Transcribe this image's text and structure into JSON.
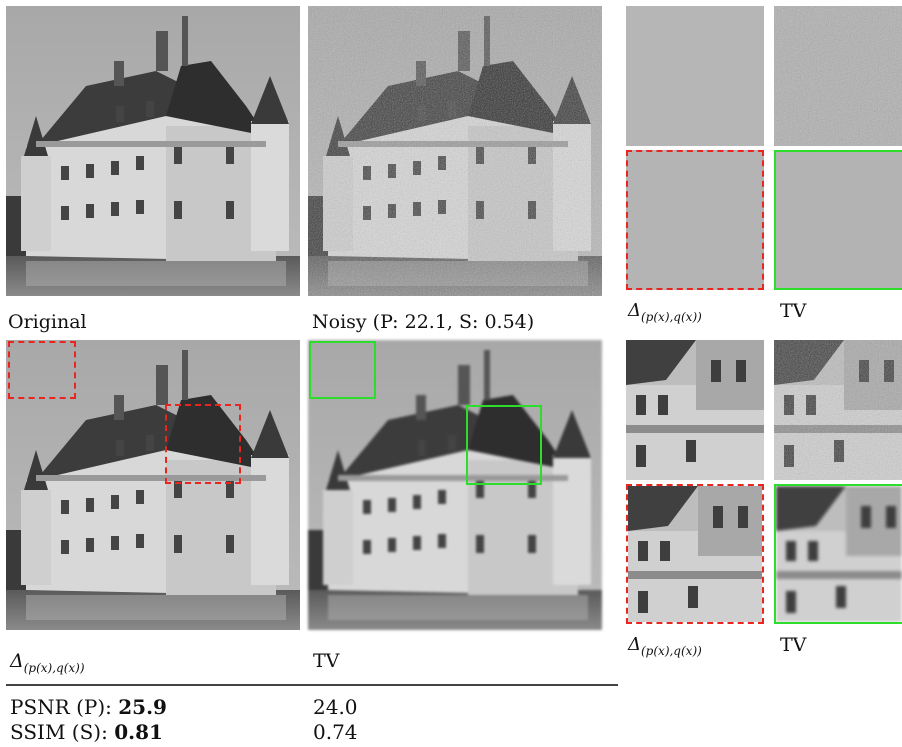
{
  "panels": {
    "original_caption": "Original",
    "noisy_caption": "Noisy (P: 22.1, S: 0.54)",
    "delta_caption_symbol": "Δ",
    "delta_caption_subscript": "(p(x),q(x))",
    "tv_caption": "TV"
  },
  "metrics": {
    "psnr_label": "PSNR (P):",
    "psnr_delta": "25.9",
    "psnr_tv": "24.0",
    "ssim_label": "SSIM (S):",
    "ssim_delta": "0.81",
    "ssim_tv": "0.74"
  },
  "zoom_top": {
    "delta_symbol": "Δ",
    "delta_subscript": "(p(x),q(x))",
    "tv": "TV"
  },
  "zoom_bottom": {
    "delta_symbol": "Δ",
    "delta_subscript": "(p(x),q(x))",
    "tv": "TV"
  },
  "colors": {
    "delta_box": "#e8261f",
    "tv_box": "#2ddc2d"
  }
}
